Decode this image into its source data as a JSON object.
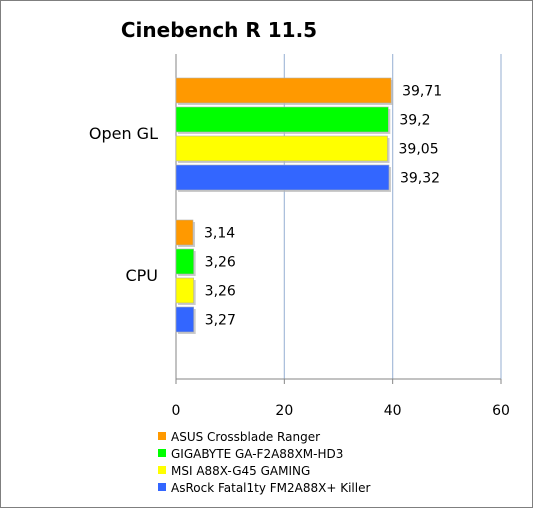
{
  "chart_data": {
    "type": "bar",
    "orientation": "horizontal",
    "title": "Cinebench R 11.5",
    "xlabel": "",
    "ylabel": "",
    "categories": [
      "Open GL",
      "CPU"
    ],
    "series": [
      {
        "name": "ASUS Crossblade Ranger",
        "color": "#ff9900",
        "values": [
          39.71,
          3.14
        ],
        "labels": [
          "39,71",
          "3,14"
        ]
      },
      {
        "name": "GIGABYTE GA-F2A88XM-HD3",
        "color": "#00ff00",
        "values": [
          39.2,
          3.26
        ],
        "labels": [
          "39,2",
          "3,26"
        ]
      },
      {
        "name": "MSI A88X-G45 GAMING",
        "color": "#ffff00",
        "values": [
          39.05,
          3.26
        ],
        "labels": [
          "39,05",
          "3,26"
        ]
      },
      {
        "name": "AsRock Fatal1ty FM2A88X+ Killer",
        "color": "#3366ff",
        "values": [
          39.32,
          3.27
        ],
        "labels": [
          "39,32",
          "3,27"
        ]
      }
    ],
    "xlim": [
      0,
      60
    ],
    "xticks": [
      0,
      20,
      40,
      60
    ],
    "grid": "vertical",
    "legend_position": "bottom"
  }
}
